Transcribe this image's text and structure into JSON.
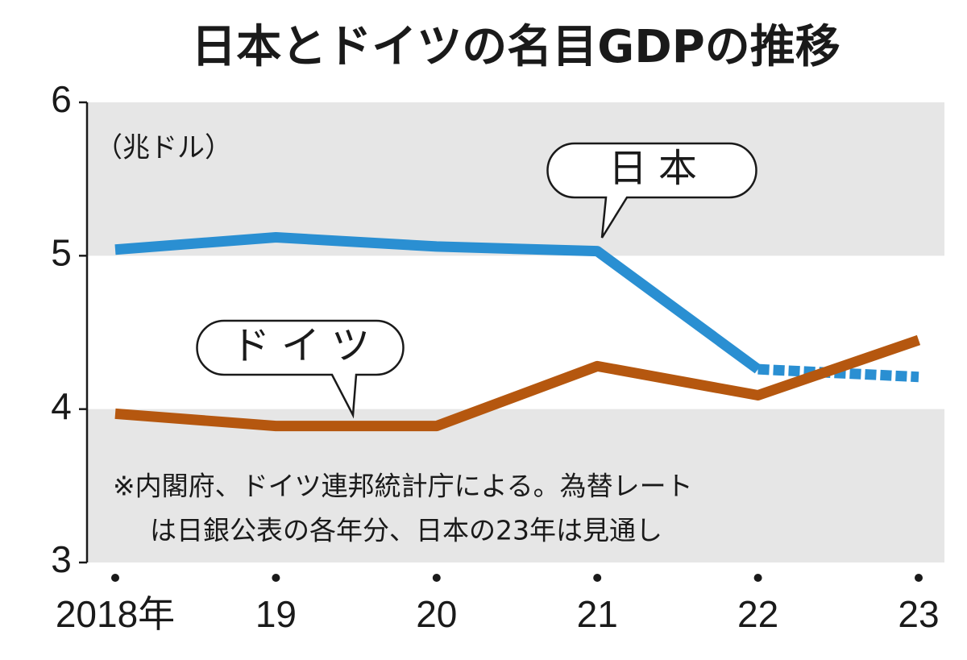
{
  "chart_data": {
    "type": "line",
    "title": "日本とドイツの名目GDPの推移",
    "y_unit": "（兆ドル）",
    "categories": [
      "2018年",
      "19",
      "20",
      "21",
      "22",
      "23"
    ],
    "series": [
      {
        "name": "日本",
        "color": "#2a8fd2",
        "values": [
          5.04,
          5.12,
          5.06,
          5.03,
          4.26,
          4.21
        ],
        "projected_last": true
      },
      {
        "name": "ドイツ",
        "color": "#b5570f",
        "values": [
          3.97,
          3.89,
          3.89,
          4.28,
          4.09,
          4.45
        ],
        "projected_last": false
      }
    ],
    "ylim": [
      3,
      6
    ],
    "yticks": [
      3,
      4,
      5,
      6
    ],
    "grid_bands": true,
    "note": [
      "※内閣府、ドイツ連邦統計庁による。為替レート",
      "は日銀公表の各年分、日本の23年は見通し"
    ]
  }
}
